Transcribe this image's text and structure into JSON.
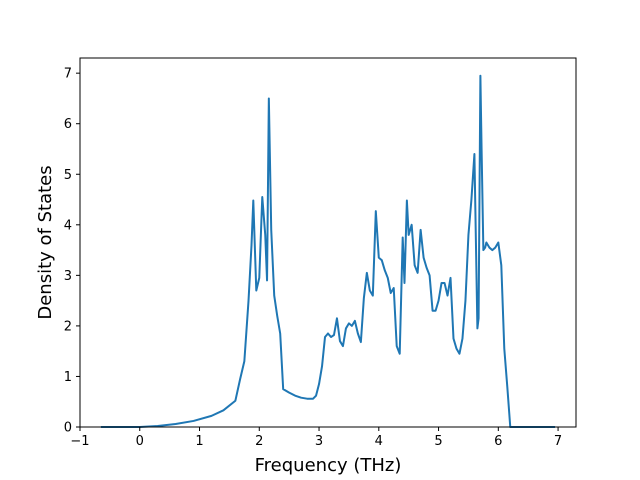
{
  "colors": {
    "line": "#1f77b4",
    "axes": "#000000",
    "background": "#ffffff"
  },
  "chart_data": {
    "type": "line",
    "title": "",
    "xlabel": "Frequency (THz)",
    "ylabel": "Density of States",
    "xlim": [
      -1,
      7.3
    ],
    "ylim": [
      0,
      7.3
    ],
    "xticks": [
      -1,
      0,
      1,
      2,
      3,
      4,
      5,
      6,
      7
    ],
    "xtick_labels": [
      "−1",
      "0",
      "1",
      "2",
      "3",
      "4",
      "5",
      "6",
      "7"
    ],
    "yticks": [
      0,
      1,
      2,
      3,
      4,
      5,
      6,
      7
    ],
    "ytick_labels": [
      "0",
      "1",
      "2",
      "3",
      "4",
      "5",
      "6",
      "7"
    ],
    "grid": false,
    "legend": false,
    "series": [
      {
        "x": [
          -0.65,
          -0.3,
          0.0,
          0.3,
          0.6,
          0.9,
          1.2,
          1.4,
          1.6,
          1.68,
          1.75,
          1.82,
          1.87,
          1.9,
          1.95,
          2.0,
          2.05,
          2.1,
          2.13,
          2.16,
          2.2,
          2.25,
          2.3,
          2.35,
          2.4,
          2.5,
          2.6,
          2.7,
          2.8,
          2.9,
          2.95,
          3.0,
          3.05,
          3.1,
          3.15,
          3.2,
          3.25,
          3.3,
          3.35,
          3.4,
          3.45,
          3.5,
          3.55,
          3.6,
          3.65,
          3.7,
          3.75,
          3.8,
          3.85,
          3.9,
          3.95,
          4.0,
          4.05,
          4.1,
          4.15,
          4.2,
          4.25,
          4.3,
          4.35,
          4.4,
          4.43,
          4.47,
          4.5,
          4.55,
          4.6,
          4.65,
          4.7,
          4.75,
          4.8,
          4.85,
          4.9,
          4.95,
          5.0,
          5.05,
          5.1,
          5.15,
          5.2,
          5.25,
          5.3,
          5.35,
          5.4,
          5.45,
          5.5,
          5.55,
          5.6,
          5.65,
          5.67,
          5.7,
          5.72,
          5.75,
          5.78,
          5.8,
          5.85,
          5.9,
          5.95,
          6.0,
          6.05,
          6.1,
          6.15,
          6.2,
          6.25,
          6.28,
          6.3,
          6.35,
          6.5,
          6.95
        ],
        "y": [
          0.0,
          0.0,
          0.0,
          0.02,
          0.06,
          0.12,
          0.22,
          0.33,
          0.52,
          0.95,
          1.3,
          2.5,
          3.6,
          4.48,
          2.7,
          2.95,
          4.55,
          3.8,
          2.9,
          6.5,
          3.9,
          2.6,
          2.2,
          1.85,
          0.75,
          0.68,
          0.62,
          0.58,
          0.56,
          0.56,
          0.62,
          0.85,
          1.2,
          1.78,
          1.85,
          1.78,
          1.82,
          2.15,
          1.7,
          1.6,
          1.95,
          2.05,
          2.0,
          2.1,
          1.85,
          1.68,
          2.55,
          3.05,
          2.7,
          2.6,
          4.27,
          3.35,
          3.3,
          3.1,
          2.95,
          2.65,
          2.75,
          1.6,
          1.45,
          3.75,
          2.85,
          4.48,
          3.8,
          4.0,
          3.2,
          3.05,
          3.9,
          3.35,
          3.15,
          3.0,
          2.3,
          2.3,
          2.5,
          2.85,
          2.85,
          2.6,
          2.95,
          1.75,
          1.55,
          1.45,
          1.75,
          2.5,
          3.8,
          4.5,
          5.4,
          1.95,
          2.15,
          6.95,
          5.5,
          3.5,
          3.55,
          3.65,
          3.55,
          3.5,
          3.55,
          3.65,
          3.2,
          1.55,
          0.8,
          0.0,
          0.0,
          0.0,
          0.0,
          0.0,
          0.0,
          0.0
        ]
      }
    ]
  }
}
